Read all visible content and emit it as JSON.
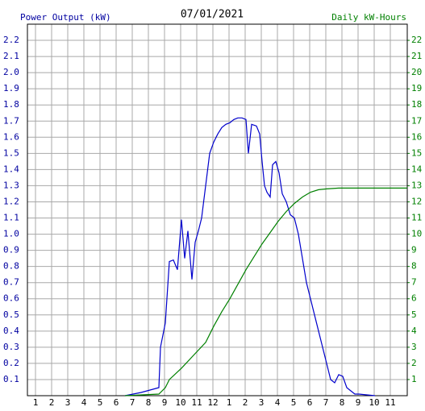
{
  "chart_data": {
    "type": "line",
    "title": "07/01/2021",
    "y_label": "Power Output (kW)",
    "y2_label": "Daily kW-Hours",
    "y_label_color": "#0000a0",
    "y2_label_color": "#008000",
    "grid": true,
    "xlim": [
      0.5,
      24.05
    ],
    "xticks": [
      1,
      2,
      3,
      4,
      5,
      6,
      7,
      8,
      9,
      10,
      11,
      12,
      {
        "value": 13,
        "label": "1"
      },
      {
        "value": 14,
        "label": "2"
      },
      {
        "value": 15,
        "label": "3"
      },
      {
        "value": 16,
        "label": "4"
      },
      {
        "value": 17,
        "label": "5"
      },
      {
        "value": 18,
        "label": "6"
      },
      {
        "value": 19,
        "label": "7"
      },
      {
        "value": 20,
        "label": "8"
      },
      {
        "value": 21,
        "label": "9"
      },
      {
        "value": 22,
        "label": "10"
      },
      {
        "value": 23,
        "label": "11"
      }
    ],
    "ylim": [
      0,
      2.3
    ],
    "yticks": [
      0.1,
      0.2,
      0.3,
      0.4,
      0.5,
      0.6,
      0.7,
      0.8,
      0.9,
      {
        "value": 1.0,
        "label": "1.0"
      },
      1.1,
      1.2,
      1.3,
      1.4,
      1.5,
      1.6,
      1.7,
      1.8,
      1.9,
      {
        "value": 2.0,
        "label": "2.0"
      },
      2.1,
      2.2
    ],
    "y2lim": [
      0,
      23
    ],
    "y2ticks": [
      1,
      2,
      3,
      4,
      5,
      6,
      7,
      8,
      9,
      10,
      11,
      12,
      13,
      14,
      15,
      16,
      17,
      18,
      19,
      20,
      21,
      22
    ],
    "series": [
      {
        "color": "#0000cc",
        "axis": "y",
        "x": [
          6.55,
          7.55,
          8.65,
          8.75,
          9.05,
          9.3,
          9.55,
          9.8,
          10.05,
          10.25,
          10.45,
          10.7,
          10.9,
          11.1,
          11.3,
          11.55,
          11.8,
          12.05,
          12.3,
          12.55,
          12.8,
          13.05,
          13.3,
          13.55,
          13.8,
          14.05,
          14.2,
          14.4,
          14.7,
          14.9,
          15.05,
          15.2,
          15.35,
          15.55,
          15.7,
          15.9,
          16.1,
          16.3,
          16.55,
          16.8,
          17.05,
          17.3,
          17.55,
          17.8,
          18.05,
          18.3,
          18.55,
          18.8,
          19.05,
          19.3,
          19.55,
          19.8,
          20.05,
          20.3,
          20.55,
          20.8,
          21.05,
          22.05
        ],
        "values": [
          0,
          0.02,
          0.05,
          0.3,
          0.45,
          0.83,
          0.84,
          0.78,
          1.09,
          0.85,
          1.02,
          0.72,
          0.95,
          1.02,
          1.1,
          1.3,
          1.5,
          1.57,
          1.62,
          1.66,
          1.68,
          1.69,
          1.71,
          1.72,
          1.72,
          1.71,
          1.5,
          1.68,
          1.67,
          1.62,
          1.45,
          1.3,
          1.26,
          1.23,
          1.43,
          1.45,
          1.38,
          1.25,
          1.2,
          1.12,
          1.1,
          1.0,
          0.85,
          0.7,
          0.6,
          0.5,
          0.4,
          0.3,
          0.2,
          0.1,
          0.08,
          0.13,
          0.12,
          0.05,
          0.03,
          0.01,
          0.01,
          0
        ]
      },
      {
        "color": "#008000",
        "axis": "y2",
        "x": [
          6.55,
          8.65,
          9.05,
          9.3,
          10.05,
          10.8,
          11.55,
          12.05,
          12.55,
          13.05,
          13.55,
          14.05,
          14.55,
          15.05,
          15.55,
          16.05,
          16.55,
          17.05,
          17.55,
          18.05,
          18.55,
          19.05,
          19.8,
          20.8,
          24.05
        ],
        "values": [
          0,
          0.1,
          0.5,
          1.0,
          1.7,
          2.5,
          3.3,
          4.3,
          5.2,
          6.0,
          6.9,
          7.8,
          8.6,
          9.4,
          10.1,
          10.8,
          11.4,
          11.9,
          12.3,
          12.6,
          12.75,
          12.8,
          12.85,
          12.85,
          12.85
        ]
      }
    ]
  }
}
